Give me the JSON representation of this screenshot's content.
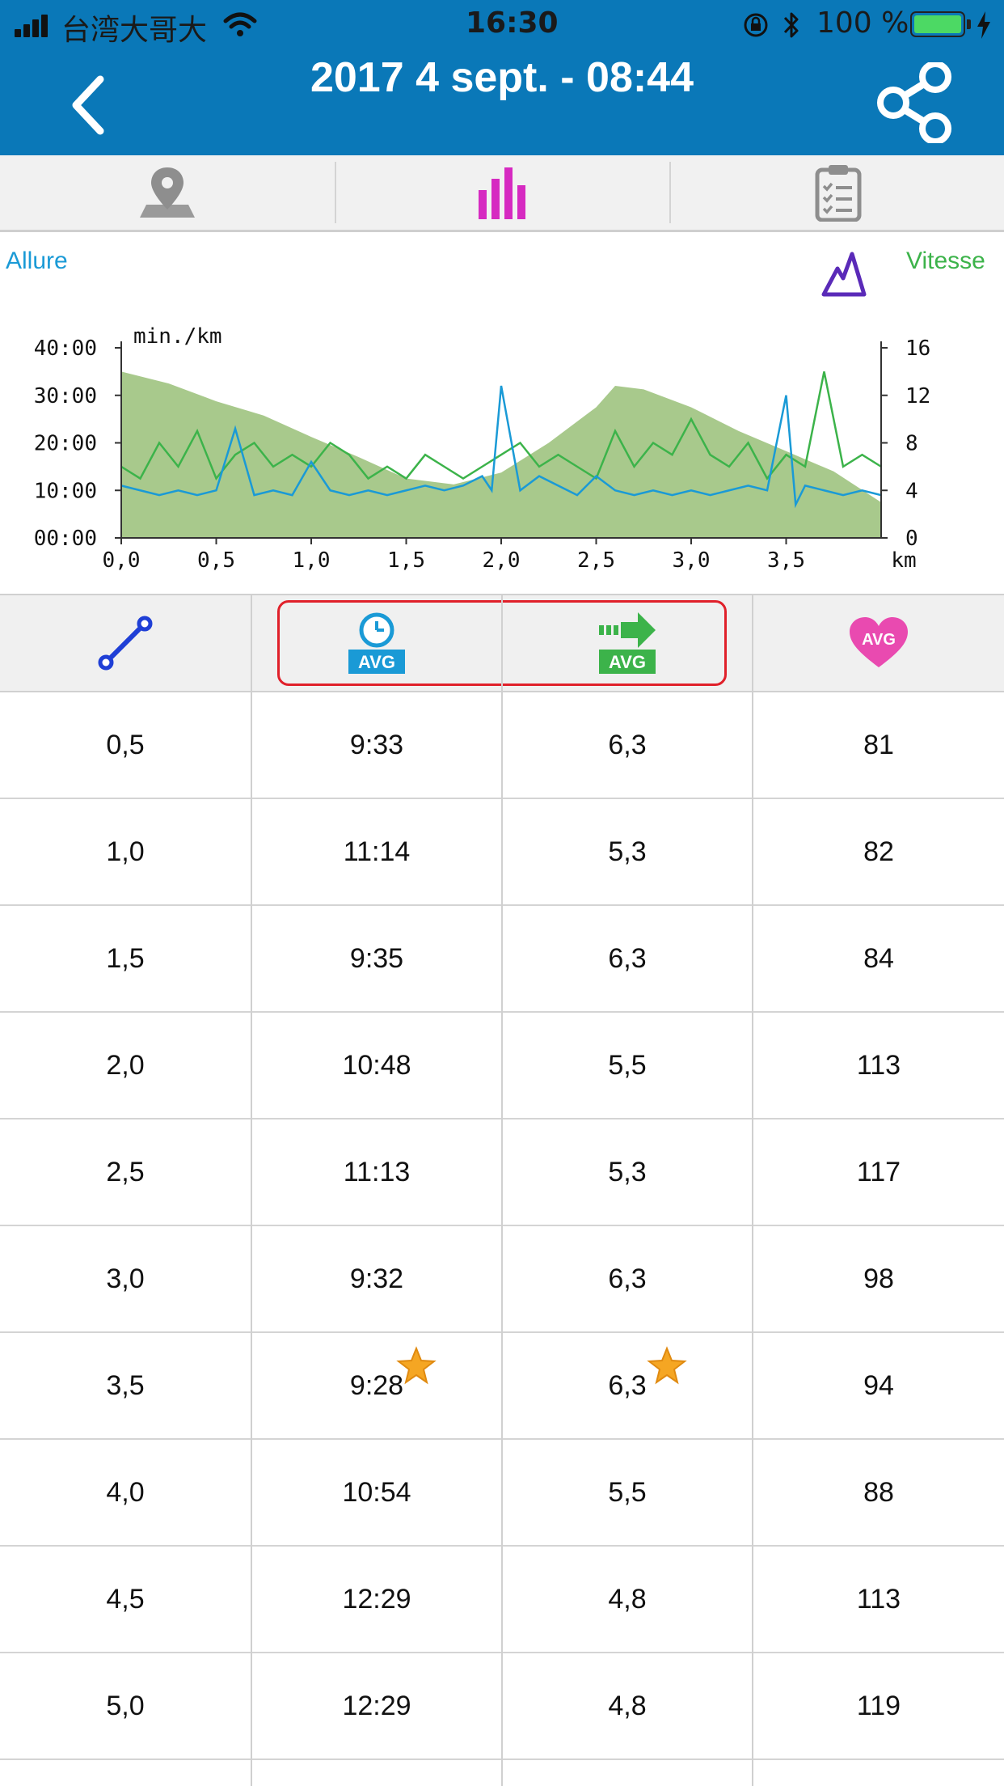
{
  "status_bar": {
    "carrier": "台湾大哥大",
    "time": "16:30",
    "battery_percent": "100 %"
  },
  "header": {
    "title": "2017 4 sept. - 08:44"
  },
  "tabs": [
    {
      "icon": "map-pin-icon",
      "active": false
    },
    {
      "icon": "bar-chart-icon",
      "active": true
    },
    {
      "icon": "clipboard-icon",
      "active": false
    }
  ],
  "chart_legend": {
    "left_label": "Allure",
    "right_label": "Vitesse",
    "left_color": "#1a9ad6",
    "right_color": "#3cb34a",
    "elevation_icon": "mountain-icon"
  },
  "chart_data": {
    "type": "line",
    "y_unit_label": "min./km",
    "x_unit_label": "km",
    "x_ticks": [
      "0,0",
      "0,5",
      "1,0",
      "1,5",
      "2,0",
      "2,5",
      "3,0",
      "3,5"
    ],
    "y_left_ticks": [
      "00:00",
      "10:00",
      "20:00",
      "30:00",
      "40:00"
    ],
    "y_right_ticks": [
      "0",
      "4",
      "8",
      "12",
      "16"
    ],
    "xlim": [
      0,
      4.0
    ],
    "y_left_lim": [
      0,
      40
    ],
    "y_right_lim": [
      0,
      16
    ],
    "series": [
      {
        "role": "elevation_area",
        "color": "#a8c98c",
        "x": [
          0,
          0.25,
          0.5,
          0.75,
          1.0,
          1.25,
          1.5,
          1.75,
          2.0,
          2.25,
          2.5,
          2.6,
          2.75,
          3.0,
          3.25,
          3.5,
          3.75,
          4.0
        ],
        "y": [
          14,
          13,
          11.5,
          10.3,
          8.5,
          6.8,
          5,
          4.5,
          5.5,
          8,
          11,
          12.8,
          12.5,
          11,
          9,
          7.3,
          5.6,
          3
        ]
      },
      {
        "role": "pace",
        "name": "Allure",
        "color": "#1a9ad6",
        "x": [
          0,
          0.1,
          0.2,
          0.3,
          0.4,
          0.5,
          0.6,
          0.7,
          0.8,
          0.9,
          1.0,
          1.1,
          1.2,
          1.3,
          1.4,
          1.5,
          1.6,
          1.7,
          1.8,
          1.9,
          1.95,
          2.0,
          2.1,
          2.2,
          2.3,
          2.4,
          2.5,
          2.6,
          2.7,
          2.8,
          2.9,
          3.0,
          3.1,
          3.2,
          3.3,
          3.4,
          3.5,
          3.55,
          3.6,
          3.7,
          3.8,
          3.9,
          4.0
        ],
        "y": [
          11,
          10,
          9,
          10,
          9,
          10,
          23,
          9,
          10,
          9,
          16,
          10,
          9,
          10,
          9,
          10,
          11,
          10,
          11,
          13,
          10,
          32,
          10,
          13,
          11,
          9,
          13,
          10,
          9,
          10,
          9,
          10,
          9,
          10,
          11,
          10,
          30,
          7,
          11,
          10,
          9,
          10,
          9
        ]
      },
      {
        "role": "speed",
        "name": "Vitesse",
        "color": "#3cb34a",
        "x": [
          0,
          0.1,
          0.2,
          0.3,
          0.4,
          0.5,
          0.6,
          0.7,
          0.8,
          0.9,
          1.0,
          1.1,
          1.2,
          1.3,
          1.4,
          1.5,
          1.6,
          1.7,
          1.8,
          1.9,
          2.0,
          2.1,
          2.2,
          2.3,
          2.4,
          2.5,
          2.6,
          2.7,
          2.8,
          2.9,
          3.0,
          3.1,
          3.2,
          3.3,
          3.4,
          3.5,
          3.6,
          3.7,
          3.8,
          3.9,
          4.0
        ],
        "y": [
          6,
          5,
          8,
          6,
          9,
          5,
          7,
          8,
          6,
          7,
          6,
          8,
          7,
          5,
          6,
          5,
          7,
          6,
          5,
          6,
          7,
          8,
          6,
          7,
          6,
          5,
          9,
          6,
          8,
          7,
          10,
          7,
          6,
          8,
          5,
          7,
          6,
          14,
          6,
          7,
          6
        ]
      }
    ]
  },
  "table": {
    "header_icons": [
      "distance-icon",
      "avg-pace-icon",
      "avg-speed-icon",
      "avg-heart-rate-icon"
    ],
    "header_badge_text": "AVG",
    "rows": [
      {
        "km": "0,5",
        "pace": "9:33",
        "speed": "6,3",
        "hr": "81",
        "best": false
      },
      {
        "km": "1,0",
        "pace": "11:14",
        "speed": "5,3",
        "hr": "82",
        "best": false
      },
      {
        "km": "1,5",
        "pace": "9:35",
        "speed": "6,3",
        "hr": "84",
        "best": false
      },
      {
        "km": "2,0",
        "pace": "10:48",
        "speed": "5,5",
        "hr": "113",
        "best": false
      },
      {
        "km": "2,5",
        "pace": "11:13",
        "speed": "5,3",
        "hr": "117",
        "best": false
      },
      {
        "km": "3,0",
        "pace": "9:32",
        "speed": "6,3",
        "hr": "98",
        "best": false
      },
      {
        "km": "3,5",
        "pace": "9:28",
        "speed": "6,3",
        "hr": "94",
        "best": true
      },
      {
        "km": "4,0",
        "pace": "10:54",
        "speed": "5,5",
        "hr": "88",
        "best": false
      },
      {
        "km": "4,5",
        "pace": "12:29",
        "speed": "4,8",
        "hr": "113",
        "best": false
      },
      {
        "km": "5,0",
        "pace": "12:29",
        "speed": "4,8",
        "hr": "119",
        "best": false
      }
    ]
  }
}
